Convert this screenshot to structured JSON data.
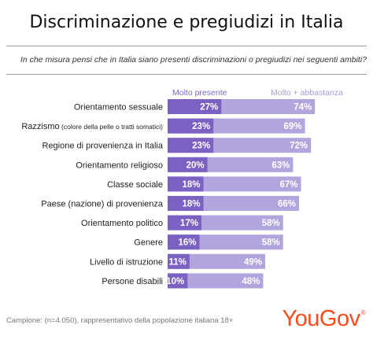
{
  "header": {
    "title": "Discriminazione e pregiudizi in Italia",
    "question": "In che misura pensi che in Italia siano presenti discriminazioni o pregiudizi nei seguenti ambiti?"
  },
  "footer": {
    "sample_note": "Campione: (n=4.050), rappresentativo della popolazione italiana 18+",
    "brand": "YouGov"
  },
  "colors": {
    "dark": "#7b61c2",
    "light": "#b2a5dd",
    "label_dark": "#7f66c4",
    "label_light": "#a99ad8",
    "brand": "#ff4a1c"
  },
  "chart_data": {
    "type": "bar",
    "orientation": "horizontal",
    "unit": "%",
    "xlim": [
      0,
      100
    ],
    "grid": false,
    "categories": [
      "Orientamento sessuale",
      "Razzismo (colore della pelle o tratti somatici)",
      "Regione di provenienza in Italia",
      "Orientamento religioso",
      "Classe sociale",
      "Paese (nazione) di provenienza",
      "Orientamento politico",
      "Genere",
      "Livello di istruzione",
      "Persone disabili"
    ],
    "series": [
      {
        "name": "Molto presente",
        "values": [
          27,
          23,
          23,
          20,
          18,
          18,
          17,
          16,
          11,
          10
        ]
      },
      {
        "name": "Molto + abbastanza",
        "values": [
          74,
          69,
          72,
          63,
          67,
          66,
          58,
          58,
          49,
          48
        ]
      }
    ]
  }
}
